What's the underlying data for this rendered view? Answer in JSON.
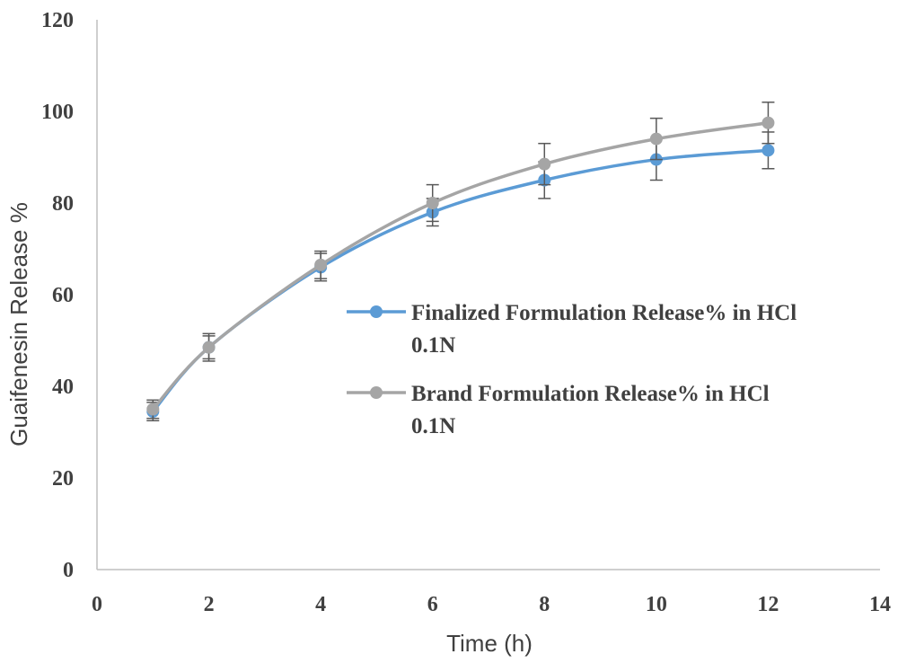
{
  "chart_data": {
    "type": "line",
    "title": "",
    "xlabel": "Time (h)",
    "ylabel": "Guaifenesin Release %",
    "xlim": [
      0,
      14
    ],
    "ylim": [
      0,
      120
    ],
    "xticks": [
      "0",
      "2",
      "4",
      "6",
      "8",
      "10",
      "12",
      "14"
    ],
    "yticks": [
      "0",
      "20",
      "40",
      "60",
      "80",
      "100",
      "120"
    ],
    "grid": false,
    "legend_position": "center-right",
    "x": [
      1,
      2,
      4,
      6,
      8,
      10,
      12
    ],
    "series": [
      {
        "name": "Finalized Formulation Release% in HCl 0.1N",
        "name_lines": [
          "Finalized Formulation Release% in HCl",
          "0.1N"
        ],
        "color": "#5b9bd5",
        "values": [
          34.5,
          48.5,
          66,
          78,
          85,
          89.5,
          91.5
        ],
        "errors": [
          2,
          3,
          3,
          3,
          4,
          4.5,
          4
        ]
      },
      {
        "name": "Brand Formulation Release% in HCl 0.1N",
        "name_lines": [
          "Brand Formulation Release% in HCl",
          "0.1N"
        ],
        "color": "#a5a5a5",
        "values": [
          35,
          48.5,
          66.5,
          80,
          88.5,
          94,
          97.5
        ],
        "errors": [
          2,
          2.5,
          3,
          4,
          4.5,
          4.5,
          4.5
        ]
      }
    ]
  }
}
